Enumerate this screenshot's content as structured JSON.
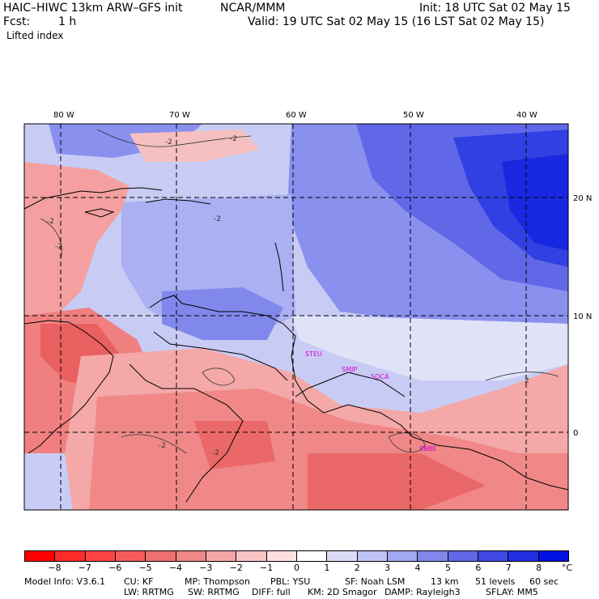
{
  "header": {
    "model_line": "HAIC–HIWC 13km ARW–GFS init",
    "org": "NCAR/MMM",
    "init": "Init: 18 UTC Sat 02 May 15",
    "fcst_label": "Fcst:",
    "fcst_value": "1 h",
    "valid": "Valid: 19 UTC Sat 02 May 15 (16 LST Sat 02 May 15)",
    "field": "Lifted index"
  },
  "map": {
    "lon_labels": [
      "80 W",
      "70 W",
      "60 W",
      "50 W",
      "40 W"
    ],
    "lat_labels": [
      "20 N",
      "10 N",
      "0"
    ],
    "stations": [
      "STEU",
      "SMJP",
      "SOCA",
      "SBBE"
    ],
    "contour_labels": [
      "-2",
      "-2",
      "-2",
      "-2",
      "-2",
      "-2",
      "-2",
      "2"
    ]
  },
  "colorbar": {
    "ticks": [
      "−8",
      "−7",
      "−6",
      "−5",
      "−4",
      "−3",
      "−2",
      "−1",
      "0",
      "1",
      "2",
      "3",
      "4",
      "5",
      "6",
      "7",
      "8"
    ],
    "unit": "°C",
    "colors": [
      "#ff0000",
      "#ff2a2a",
      "#ff4444",
      "#f55a5a",
      "#f07070",
      "#f08888",
      "#f5a5a5",
      "#fac5c5",
      "#ffe0e0",
      "#ffffff",
      "#dcdcf8",
      "#c0c4f4",
      "#a0a8f0",
      "#8088ec",
      "#6068e8",
      "#4048e4",
      "#2030e0",
      "#0010e0"
    ]
  },
  "footer": {
    "line1": [
      "Model Info: V3.6.1",
      "CU: KF",
      "MP: Thompson",
      "PBL: YSU",
      "SF: Noah LSM",
      "13 km",
      "51 levels",
      "60 sec"
    ],
    "line2": [
      "LW: RRTMG",
      "SW: RRTMG",
      "DIFF: full",
      "KM: 2D Smagor",
      "DAMP: Rayleigh3",
      "SFLAY: MM5"
    ]
  }
}
